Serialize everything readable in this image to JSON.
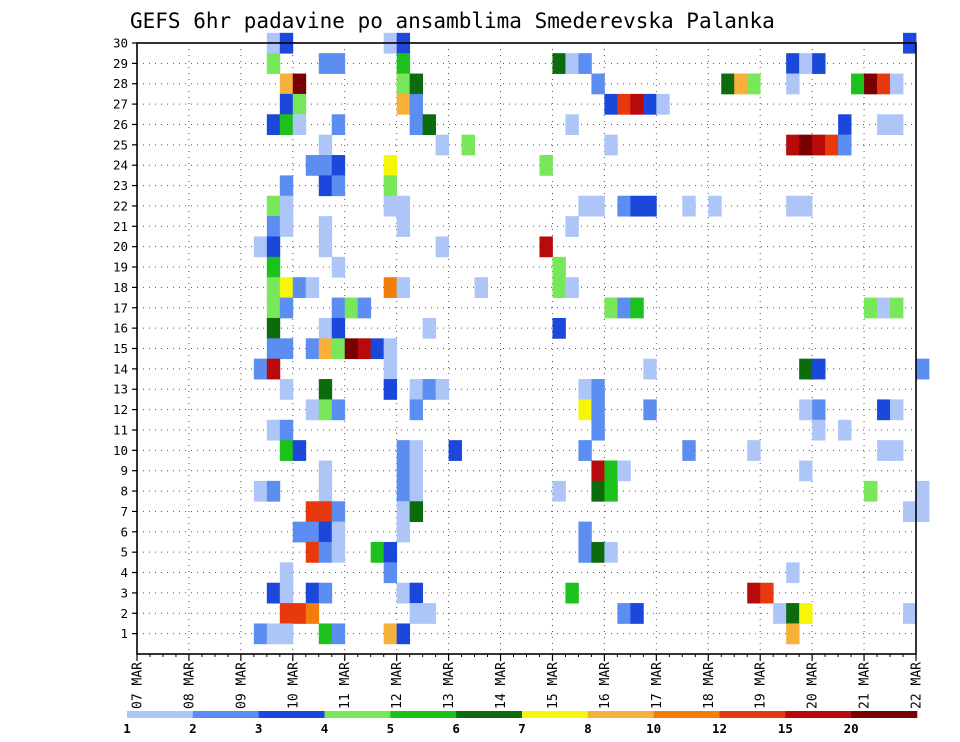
{
  "chart_data": {
    "type": "heatmap",
    "title": "GEFS 6hr padavine po ansamblima Smederevska Palanka",
    "xlabel": "",
    "ylabel": "",
    "x_ticks": [
      "07 MAR",
      "08 MAR",
      "09 MAR",
      "10 MAR",
      "11 MAR",
      "12 MAR",
      "13 MAR",
      "14 MAR",
      "15 MAR",
      "16 MAR",
      "17 MAR",
      "18 MAR",
      "19 MAR",
      "20 MAR",
      "21 MAR",
      "22 MAR"
    ],
    "y_ticks": [
      1,
      2,
      3,
      4,
      5,
      6,
      7,
      8,
      9,
      10,
      11,
      12,
      13,
      14,
      15,
      16,
      17,
      18,
      19,
      20,
      21,
      22,
      23,
      24,
      25,
      26,
      27,
      28,
      29,
      30
    ],
    "x_range_steps": [
      0,
      60
    ],
    "y_range": [
      0,
      30
    ],
    "step_hours": 6,
    "grid": "dotted",
    "legend": {
      "placement": "bottom",
      "labels": [
        "1",
        "2",
        "3",
        "4",
        "5",
        "6",
        "7",
        "8",
        "10",
        "12",
        "15",
        "20"
      ],
      "colors": [
        "#aec6f7",
        "#5b8ef0",
        "#1c47db",
        "#78e85a",
        "#1cc11c",
        "#0c6b0c",
        "#f6f60a",
        "#f7b03a",
        "#f27d0a",
        "#e8380e",
        "#b80a0a",
        "#780000"
      ]
    },
    "cells": [
      [
        10,
        30,
        0
      ],
      [
        11,
        30,
        2
      ],
      [
        19,
        30,
        0
      ],
      [
        20,
        30,
        2
      ],
      [
        59,
        30,
        2
      ],
      [
        10,
        29,
        3
      ],
      [
        14,
        29,
        1
      ],
      [
        15,
        29,
        1
      ],
      [
        20,
        29,
        4
      ],
      [
        32,
        29,
        5
      ],
      [
        33,
        29,
        0
      ],
      [
        34,
        29,
        1
      ],
      [
        50,
        29,
        2
      ],
      [
        51,
        29,
        0
      ],
      [
        52,
        29,
        2
      ],
      [
        11,
        28,
        7
      ],
      [
        12,
        28,
        11
      ],
      [
        20,
        28,
        3
      ],
      [
        21,
        28,
        5
      ],
      [
        35,
        28,
        1
      ],
      [
        45,
        28,
        5
      ],
      [
        46,
        28,
        7
      ],
      [
        47,
        28,
        3
      ],
      [
        50,
        28,
        0
      ],
      [
        55,
        28,
        4
      ],
      [
        56,
        28,
        11
      ],
      [
        57,
        28,
        9
      ],
      [
        58,
        28,
        0
      ],
      [
        11,
        27,
        2
      ],
      [
        12,
        27,
        3
      ],
      [
        20,
        27,
        7
      ],
      [
        21,
        27,
        1
      ],
      [
        36,
        27,
        2
      ],
      [
        37,
        27,
        9
      ],
      [
        38,
        27,
        10
      ],
      [
        39,
        27,
        2
      ],
      [
        40,
        27,
        0
      ],
      [
        10,
        26,
        2
      ],
      [
        11,
        26,
        4
      ],
      [
        12,
        26,
        0
      ],
      [
        15,
        26,
        1
      ],
      [
        21,
        26,
        1
      ],
      [
        22,
        26,
        5
      ],
      [
        33,
        26,
        0
      ],
      [
        54,
        26,
        2
      ],
      [
        57,
        26,
        0
      ],
      [
        58,
        26,
        0
      ],
      [
        14,
        25,
        0
      ],
      [
        23,
        25,
        0
      ],
      [
        25,
        25,
        3
      ],
      [
        36,
        25,
        0
      ],
      [
        50,
        25,
        10
      ],
      [
        51,
        25,
        11
      ],
      [
        52,
        25,
        10
      ],
      [
        53,
        25,
        9
      ],
      [
        54,
        25,
        1
      ],
      [
        13,
        24,
        1
      ],
      [
        14,
        24,
        1
      ],
      [
        15,
        24,
        2
      ],
      [
        19,
        24,
        6
      ],
      [
        31,
        24,
        3
      ],
      [
        11,
        23,
        1
      ],
      [
        14,
        23,
        2
      ],
      [
        15,
        23,
        1
      ],
      [
        19,
        23,
        3
      ],
      [
        10,
        22,
        3
      ],
      [
        11,
        22,
        0
      ],
      [
        19,
        22,
        0
      ],
      [
        20,
        22,
        0
      ],
      [
        34,
        22,
        0
      ],
      [
        35,
        22,
        0
      ],
      [
        37,
        22,
        1
      ],
      [
        38,
        22,
        2
      ],
      [
        39,
        22,
        2
      ],
      [
        42,
        22,
        0
      ],
      [
        44,
        22,
        0
      ],
      [
        50,
        22,
        0
      ],
      [
        51,
        22,
        0
      ],
      [
        10,
        21,
        1
      ],
      [
        11,
        21,
        0
      ],
      [
        14,
        21,
        0
      ],
      [
        20,
        21,
        0
      ],
      [
        33,
        21,
        0
      ],
      [
        9,
        20,
        0
      ],
      [
        10,
        20,
        2
      ],
      [
        14,
        20,
        0
      ],
      [
        23,
        20,
        0
      ],
      [
        31,
        20,
        10
      ],
      [
        10,
        19,
        4
      ],
      [
        15,
        19,
        0
      ],
      [
        32,
        19,
        3
      ],
      [
        10,
        18,
        3
      ],
      [
        11,
        18,
        6
      ],
      [
        12,
        18,
        1
      ],
      [
        13,
        18,
        0
      ],
      [
        19,
        18,
        8
      ],
      [
        20,
        18,
        0
      ],
      [
        26,
        18,
        0
      ],
      [
        32,
        18,
        3
      ],
      [
        33,
        18,
        0
      ],
      [
        10,
        17,
        3
      ],
      [
        11,
        17,
        1
      ],
      [
        15,
        17,
        1
      ],
      [
        16,
        17,
        3
      ],
      [
        17,
        17,
        1
      ],
      [
        36,
        17,
        3
      ],
      [
        37,
        17,
        1
      ],
      [
        38,
        17,
        4
      ],
      [
        56,
        17,
        3
      ],
      [
        57,
        17,
        0
      ],
      [
        58,
        17,
        3
      ],
      [
        10,
        16,
        5
      ],
      [
        14,
        16,
        0
      ],
      [
        15,
        16,
        2
      ],
      [
        22,
        16,
        0
      ],
      [
        32,
        16,
        2
      ],
      [
        10,
        15,
        1
      ],
      [
        11,
        15,
        1
      ],
      [
        13,
        15,
        1
      ],
      [
        14,
        15,
        7
      ],
      [
        15,
        15,
        3
      ],
      [
        16,
        15,
        11
      ],
      [
        17,
        15,
        10
      ],
      [
        18,
        15,
        2
      ],
      [
        19,
        15,
        0
      ],
      [
        9,
        14,
        1
      ],
      [
        10,
        14,
        10
      ],
      [
        19,
        14,
        0
      ],
      [
        39,
        14,
        0
      ],
      [
        51,
        14,
        5
      ],
      [
        52,
        14,
        2
      ],
      [
        60,
        14,
        1
      ],
      [
        11,
        13,
        0
      ],
      [
        14,
        13,
        5
      ],
      [
        19,
        13,
        2
      ],
      [
        21,
        13,
        0
      ],
      [
        22,
        13,
        1
      ],
      [
        23,
        13,
        0
      ],
      [
        34,
        13,
        0
      ],
      [
        35,
        13,
        1
      ],
      [
        13,
        12,
        0
      ],
      [
        14,
        12,
        3
      ],
      [
        15,
        12,
        1
      ],
      [
        21,
        12,
        1
      ],
      [
        34,
        12,
        6
      ],
      [
        35,
        12,
        1
      ],
      [
        39,
        12,
        1
      ],
      [
        51,
        12,
        0
      ],
      [
        52,
        12,
        1
      ],
      [
        57,
        12,
        2
      ],
      [
        58,
        12,
        0
      ],
      [
        10,
        11,
        0
      ],
      [
        11,
        11,
        1
      ],
      [
        35,
        11,
        1
      ],
      [
        52,
        11,
        0
      ],
      [
        54,
        11,
        0
      ],
      [
        11,
        10,
        4
      ],
      [
        12,
        10,
        2
      ],
      [
        20,
        10,
        1
      ],
      [
        21,
        10,
        0
      ],
      [
        24,
        10,
        2
      ],
      [
        34,
        10,
        1
      ],
      [
        42,
        10,
        1
      ],
      [
        47,
        10,
        0
      ],
      [
        57,
        10,
        0
      ],
      [
        58,
        10,
        0
      ],
      [
        14,
        9,
        0
      ],
      [
        20,
        9,
        1
      ],
      [
        21,
        9,
        0
      ],
      [
        35,
        9,
        10
      ],
      [
        36,
        9,
        4
      ],
      [
        37,
        9,
        0
      ],
      [
        51,
        9,
        0
      ],
      [
        9,
        8,
        0
      ],
      [
        10,
        8,
        1
      ],
      [
        14,
        8,
        0
      ],
      [
        20,
        8,
        1
      ],
      [
        21,
        8,
        0
      ],
      [
        32,
        8,
        0
      ],
      [
        35,
        8,
        5
      ],
      [
        36,
        8,
        4
      ],
      [
        56,
        8,
        3
      ],
      [
        60,
        8,
        0
      ],
      [
        13,
        7,
        9
      ],
      [
        14,
        7,
        9
      ],
      [
        15,
        7,
        1
      ],
      [
        20,
        7,
        0
      ],
      [
        21,
        7,
        5
      ],
      [
        59,
        7,
        0
      ],
      [
        60,
        7,
        0
      ],
      [
        12,
        6,
        1
      ],
      [
        13,
        6,
        1
      ],
      [
        14,
        6,
        2
      ],
      [
        15,
        6,
        0
      ],
      [
        20,
        6,
        0
      ],
      [
        34,
        6,
        1
      ],
      [
        13,
        5,
        9
      ],
      [
        14,
        5,
        1
      ],
      [
        15,
        5,
        0
      ],
      [
        18,
        5,
        4
      ],
      [
        19,
        5,
        2
      ],
      [
        34,
        5,
        1
      ],
      [
        35,
        5,
        5
      ],
      [
        36,
        5,
        0
      ],
      [
        11,
        4,
        0
      ],
      [
        19,
        4,
        1
      ],
      [
        50,
        4,
        0
      ],
      [
        10,
        3,
        2
      ],
      [
        11,
        3,
        0
      ],
      [
        13,
        3,
        2
      ],
      [
        14,
        3,
        1
      ],
      [
        20,
        3,
        0
      ],
      [
        21,
        3,
        2
      ],
      [
        33,
        3,
        4
      ],
      [
        47,
        3,
        10
      ],
      [
        48,
        3,
        9
      ],
      [
        11,
        2,
        9
      ],
      [
        12,
        2,
        9
      ],
      [
        13,
        2,
        8
      ],
      [
        21,
        2,
        0
      ],
      [
        22,
        2,
        0
      ],
      [
        37,
        2,
        1
      ],
      [
        38,
        2,
        2
      ],
      [
        49,
        2,
        0
      ],
      [
        50,
        2,
        5
      ],
      [
        51,
        2,
        6
      ],
      [
        59,
        2,
        0
      ],
      [
        9,
        1,
        1
      ],
      [
        10,
        1,
        0
      ],
      [
        11,
        1,
        0
      ],
      [
        14,
        1,
        4
      ],
      [
        15,
        1,
        1
      ],
      [
        19,
        1,
        7
      ],
      [
        20,
        1,
        2
      ],
      [
        50,
        1,
        7
      ]
    ]
  }
}
